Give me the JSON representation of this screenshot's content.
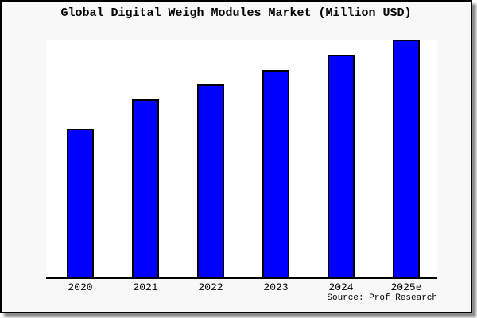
{
  "title": "Global Digital Weigh Modules Market (Million USD)",
  "source": "Source: Prof Research",
  "colors": {
    "background": "#f8f8f8",
    "plot_background": "#ffffff",
    "bar_fill": "#0000ff",
    "bar_edge": "#000000",
    "axis_line": "#000000",
    "frame_border": "#000000",
    "text": "#000000"
  },
  "chart_data": {
    "type": "bar",
    "title": "Global Digital Weigh Modules Market (Million USD)",
    "categories": [
      "2020",
      "2021",
      "2022",
      "2023",
      "2024",
      "2025e"
    ],
    "values": [
      62.7,
      75.0,
      81.5,
      87.5,
      93.6,
      100.0
    ],
    "values_note": "No y-axis ticks or data labels are rendered in the image; values are estimated bar heights expressed as percent of the tallest (2025e) bar.",
    "xlabel": "",
    "ylabel": "",
    "ylim": [
      0,
      100
    ],
    "grid": false,
    "legend": false,
    "annotation": "Source: Prof Research"
  }
}
